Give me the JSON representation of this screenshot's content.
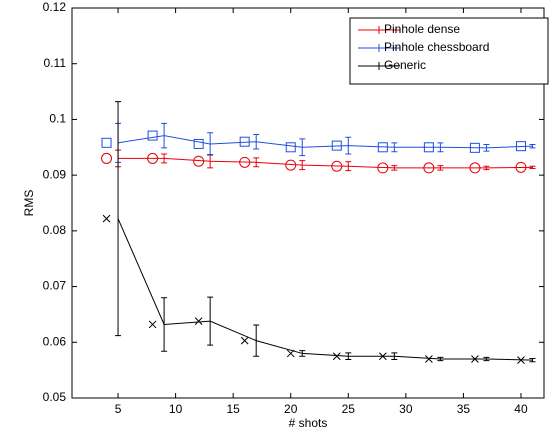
{
  "chart_data": {
    "type": "errorbar_line",
    "x_label": "# shots",
    "y_label": "RMS",
    "x": [
      5,
      9,
      13,
      17,
      21,
      25,
      29,
      33,
      37,
      41
    ],
    "marker_x": [
      4,
      8,
      12,
      16,
      20,
      24,
      28,
      32,
      36,
      40
    ],
    "series": [
      {
        "name": "Pinhole dense",
        "color": "#e8000b",
        "marker": "circle",
        "values": [
          0.093,
          0.093,
          0.0925,
          0.0923,
          0.0918,
          0.0916,
          0.0913,
          0.0913,
          0.0913,
          0.0914
        ],
        "errors": [
          0.0015,
          0.0008,
          0.0012,
          0.0008,
          0.0008,
          0.0008,
          0.0004,
          0.0004,
          0.0003,
          0.0002
        ]
      },
      {
        "name": "Pinhole chessboard",
        "color": "#1f4fe0",
        "marker": "square",
        "values": [
          0.0958,
          0.0971,
          0.0956,
          0.096,
          0.095,
          0.0953,
          0.095,
          0.095,
          0.0949,
          0.0952
        ],
        "errors": [
          0.0035,
          0.0022,
          0.002,
          0.0013,
          0.0015,
          0.0015,
          0.0008,
          0.0008,
          0.0006,
          0.0003
        ]
      },
      {
        "name": "Generic",
        "color": "#000000",
        "marker": "x",
        "values": [
          0.0822,
          0.0632,
          0.0638,
          0.0603,
          0.058,
          0.0575,
          0.0575,
          0.057,
          0.057,
          0.0568
        ],
        "errors": [
          0.021,
          0.0048,
          0.0043,
          0.0028,
          0.0005,
          0.0006,
          0.0006,
          0.0003,
          0.0003,
          0.0003
        ]
      }
    ],
    "xlim": [
      1,
      42
    ],
    "xticks": [
      5,
      10,
      15,
      20,
      25,
      30,
      35,
      40
    ],
    "ylim": [
      0.05,
      0.12
    ],
    "yticks": [
      0.05,
      0.06,
      0.07,
      0.08,
      0.09,
      0.1,
      0.11,
      0.12
    ],
    "legend": "top-right"
  }
}
